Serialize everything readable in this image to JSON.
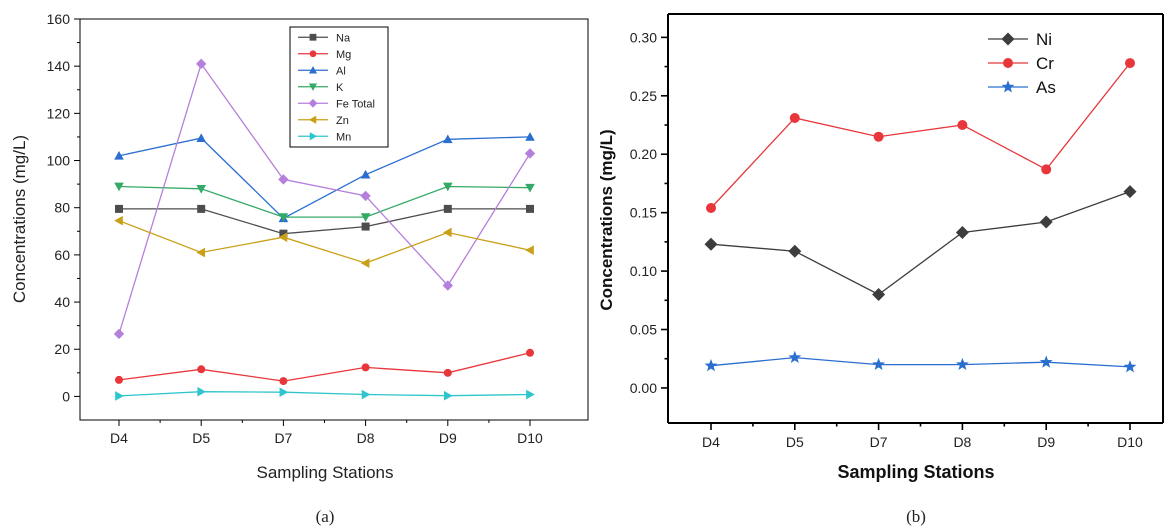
{
  "chart_data": [
    {
      "type": "line",
      "caption": "(a)",
      "categories": [
        "D4",
        "D5",
        "D7",
        "D8",
        "D9",
        "D10"
      ],
      "xlabel": "Sampling Stations",
      "ylabel": "Concentrations (mg/L)",
      "ylim": [
        -10,
        160
      ],
      "yticks": [
        0,
        20,
        40,
        60,
        80,
        100,
        120,
        140,
        160
      ],
      "legend_position": "top-center",
      "series": [
        {
          "name": "Na",
          "color": "#4d4d4d",
          "marker": "square",
          "values": [
            79.5,
            79.5,
            69,
            72,
            79.5,
            79.5
          ]
        },
        {
          "name": "Mg",
          "color": "#e8363b",
          "marker": "circle",
          "values": [
            7,
            11.5,
            6.5,
            12.3,
            10,
            18.5
          ]
        },
        {
          "name": "Al",
          "color": "#2a6fd0",
          "marker": "triangle-up",
          "values": [
            102,
            109.5,
            75.5,
            94,
            109,
            110
          ]
        },
        {
          "name": "K",
          "color": "#33aa66",
          "marker": "triangle-down",
          "values": [
            89,
            88,
            76,
            76,
            89,
            88.5
          ]
        },
        {
          "name": "Fe Total",
          "color": "#b57fdd",
          "marker": "diamond",
          "values": [
            26.5,
            141,
            92,
            85,
            47,
            103
          ]
        },
        {
          "name": "Zn",
          "color": "#c9a017",
          "marker": "triangle-left",
          "values": [
            74.5,
            61,
            67.5,
            56.5,
            69.5,
            62
          ]
        },
        {
          "name": "Mn",
          "color": "#2fc5cc",
          "marker": "triangle-right",
          "values": [
            0.2,
            2,
            1.8,
            0.8,
            0.3,
            0.8
          ]
        }
      ]
    },
    {
      "type": "line",
      "caption": "(b)",
      "categories": [
        "D4",
        "D5",
        "D7",
        "D8",
        "D9",
        "D10"
      ],
      "xlabel": "Sampling Stations",
      "ylabel": "Concentrations (mg/L)",
      "ylim": [
        -0.03,
        0.32
      ],
      "yticks": [
        "0.00",
        "0.05",
        "0.10",
        "0.15",
        "0.20",
        "0.25",
        "0.30"
      ],
      "legend_position": "top-right",
      "series": [
        {
          "name": "Ni",
          "color": "#3d3d3d",
          "marker": "diamond",
          "values": [
            0.123,
            0.117,
            0.08,
            0.133,
            0.142,
            0.168
          ]
        },
        {
          "name": "Cr",
          "color": "#e8363b",
          "marker": "circle",
          "values": [
            0.154,
            0.231,
            0.215,
            0.225,
            0.187,
            0.278
          ]
        },
        {
          "name": "As",
          "color": "#2a6fd0",
          "marker": "star",
          "values": [
            0.019,
            0.026,
            0.02,
            0.02,
            0.022,
            0.018
          ]
        }
      ]
    }
  ]
}
